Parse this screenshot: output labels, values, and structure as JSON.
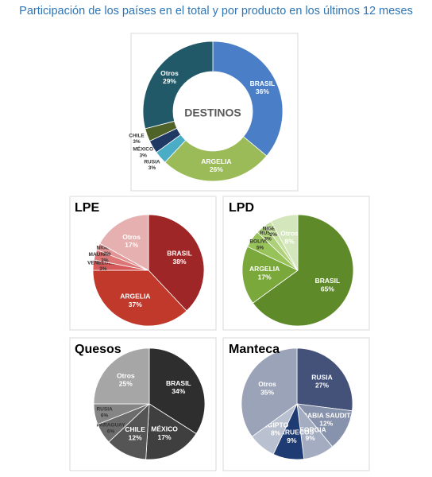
{
  "title": "Participación de los países en el total y por producto en los últimos 12 meses",
  "chart_data": [
    {
      "type": "donut",
      "center_label": "DESTINOS",
      "categories": [
        "BRASIL",
        "ARGELIA",
        "RUSIA",
        "MÉXICO",
        "CHILE",
        "Otros"
      ],
      "values": [
        36,
        26,
        3,
        3,
        3,
        29
      ],
      "value_labels": [
        "36%",
        "26%",
        "3%",
        "3%",
        "3%",
        "29%"
      ],
      "colors": [
        "#4a7ec7",
        "#9bbb59",
        "#4bacc6",
        "#1f3864",
        "#4f6228",
        "#215968"
      ]
    },
    {
      "type": "pie",
      "title": "LPE",
      "categories": [
        "BRASIL",
        "ARGELIA",
        "VENEZUELA",
        "MAURITANIA",
        "NIGERIA",
        "Otros"
      ],
      "values": [
        38,
        37,
        3,
        3,
        2,
        17
      ],
      "value_labels": [
        "38%",
        "37%",
        "3%",
        "3%",
        "2%",
        "17%"
      ],
      "colors": [
        "#9e2626",
        "#c0392b",
        "#d65a5a",
        "#dd7676",
        "#e49494",
        "#e6b0b0"
      ]
    },
    {
      "type": "pie",
      "title": "LPD",
      "categories": [
        "BRASIL",
        "ARGELIA",
        "BOLIVIA",
        "RUSIA",
        "NIGERIA",
        "Otros"
      ],
      "values": [
        65,
        17,
        5,
        3,
        2,
        8
      ],
      "value_labels": [
        "65%",
        "17%",
        "5%",
        "3%",
        "2%",
        "8%"
      ],
      "colors": [
        "#5f8a2a",
        "#7aa83a",
        "#98c25a",
        "#aed07a",
        "#c4de9c",
        "#d4e6bc"
      ]
    },
    {
      "type": "pie",
      "title": "Quesos",
      "categories": [
        "BRASIL",
        "MÉXICO",
        "CHILE",
        "PARAGUAY",
        "RUSIA",
        "Otros"
      ],
      "values": [
        34,
        17,
        12,
        6,
        6,
        25
      ],
      "value_labels": [
        "34%",
        "17%",
        "12%",
        "6%",
        "6%",
        "25%"
      ],
      "colors": [
        "#2e2e2e",
        "#3f3f3f",
        "#555555",
        "#6c6c6c",
        "#858585",
        "#a6a6a6"
      ]
    },
    {
      "type": "pie",
      "title": "Manteca",
      "categories": [
        "RUSIA",
        "ARABIA SAUDITA",
        "GEORGIA",
        "MARRUECOS",
        "EGIPTO",
        "Otros"
      ],
      "values": [
        27,
        12,
        9,
        9,
        8,
        35
      ],
      "value_labels": [
        "27%",
        "12%",
        "9%",
        "9%",
        "8%",
        "35%"
      ],
      "colors": [
        "#44527a",
        "#8792ac",
        "#a3acc0",
        "#1f3b73",
        "#b9c0d0",
        "#9aa3b8"
      ]
    }
  ]
}
